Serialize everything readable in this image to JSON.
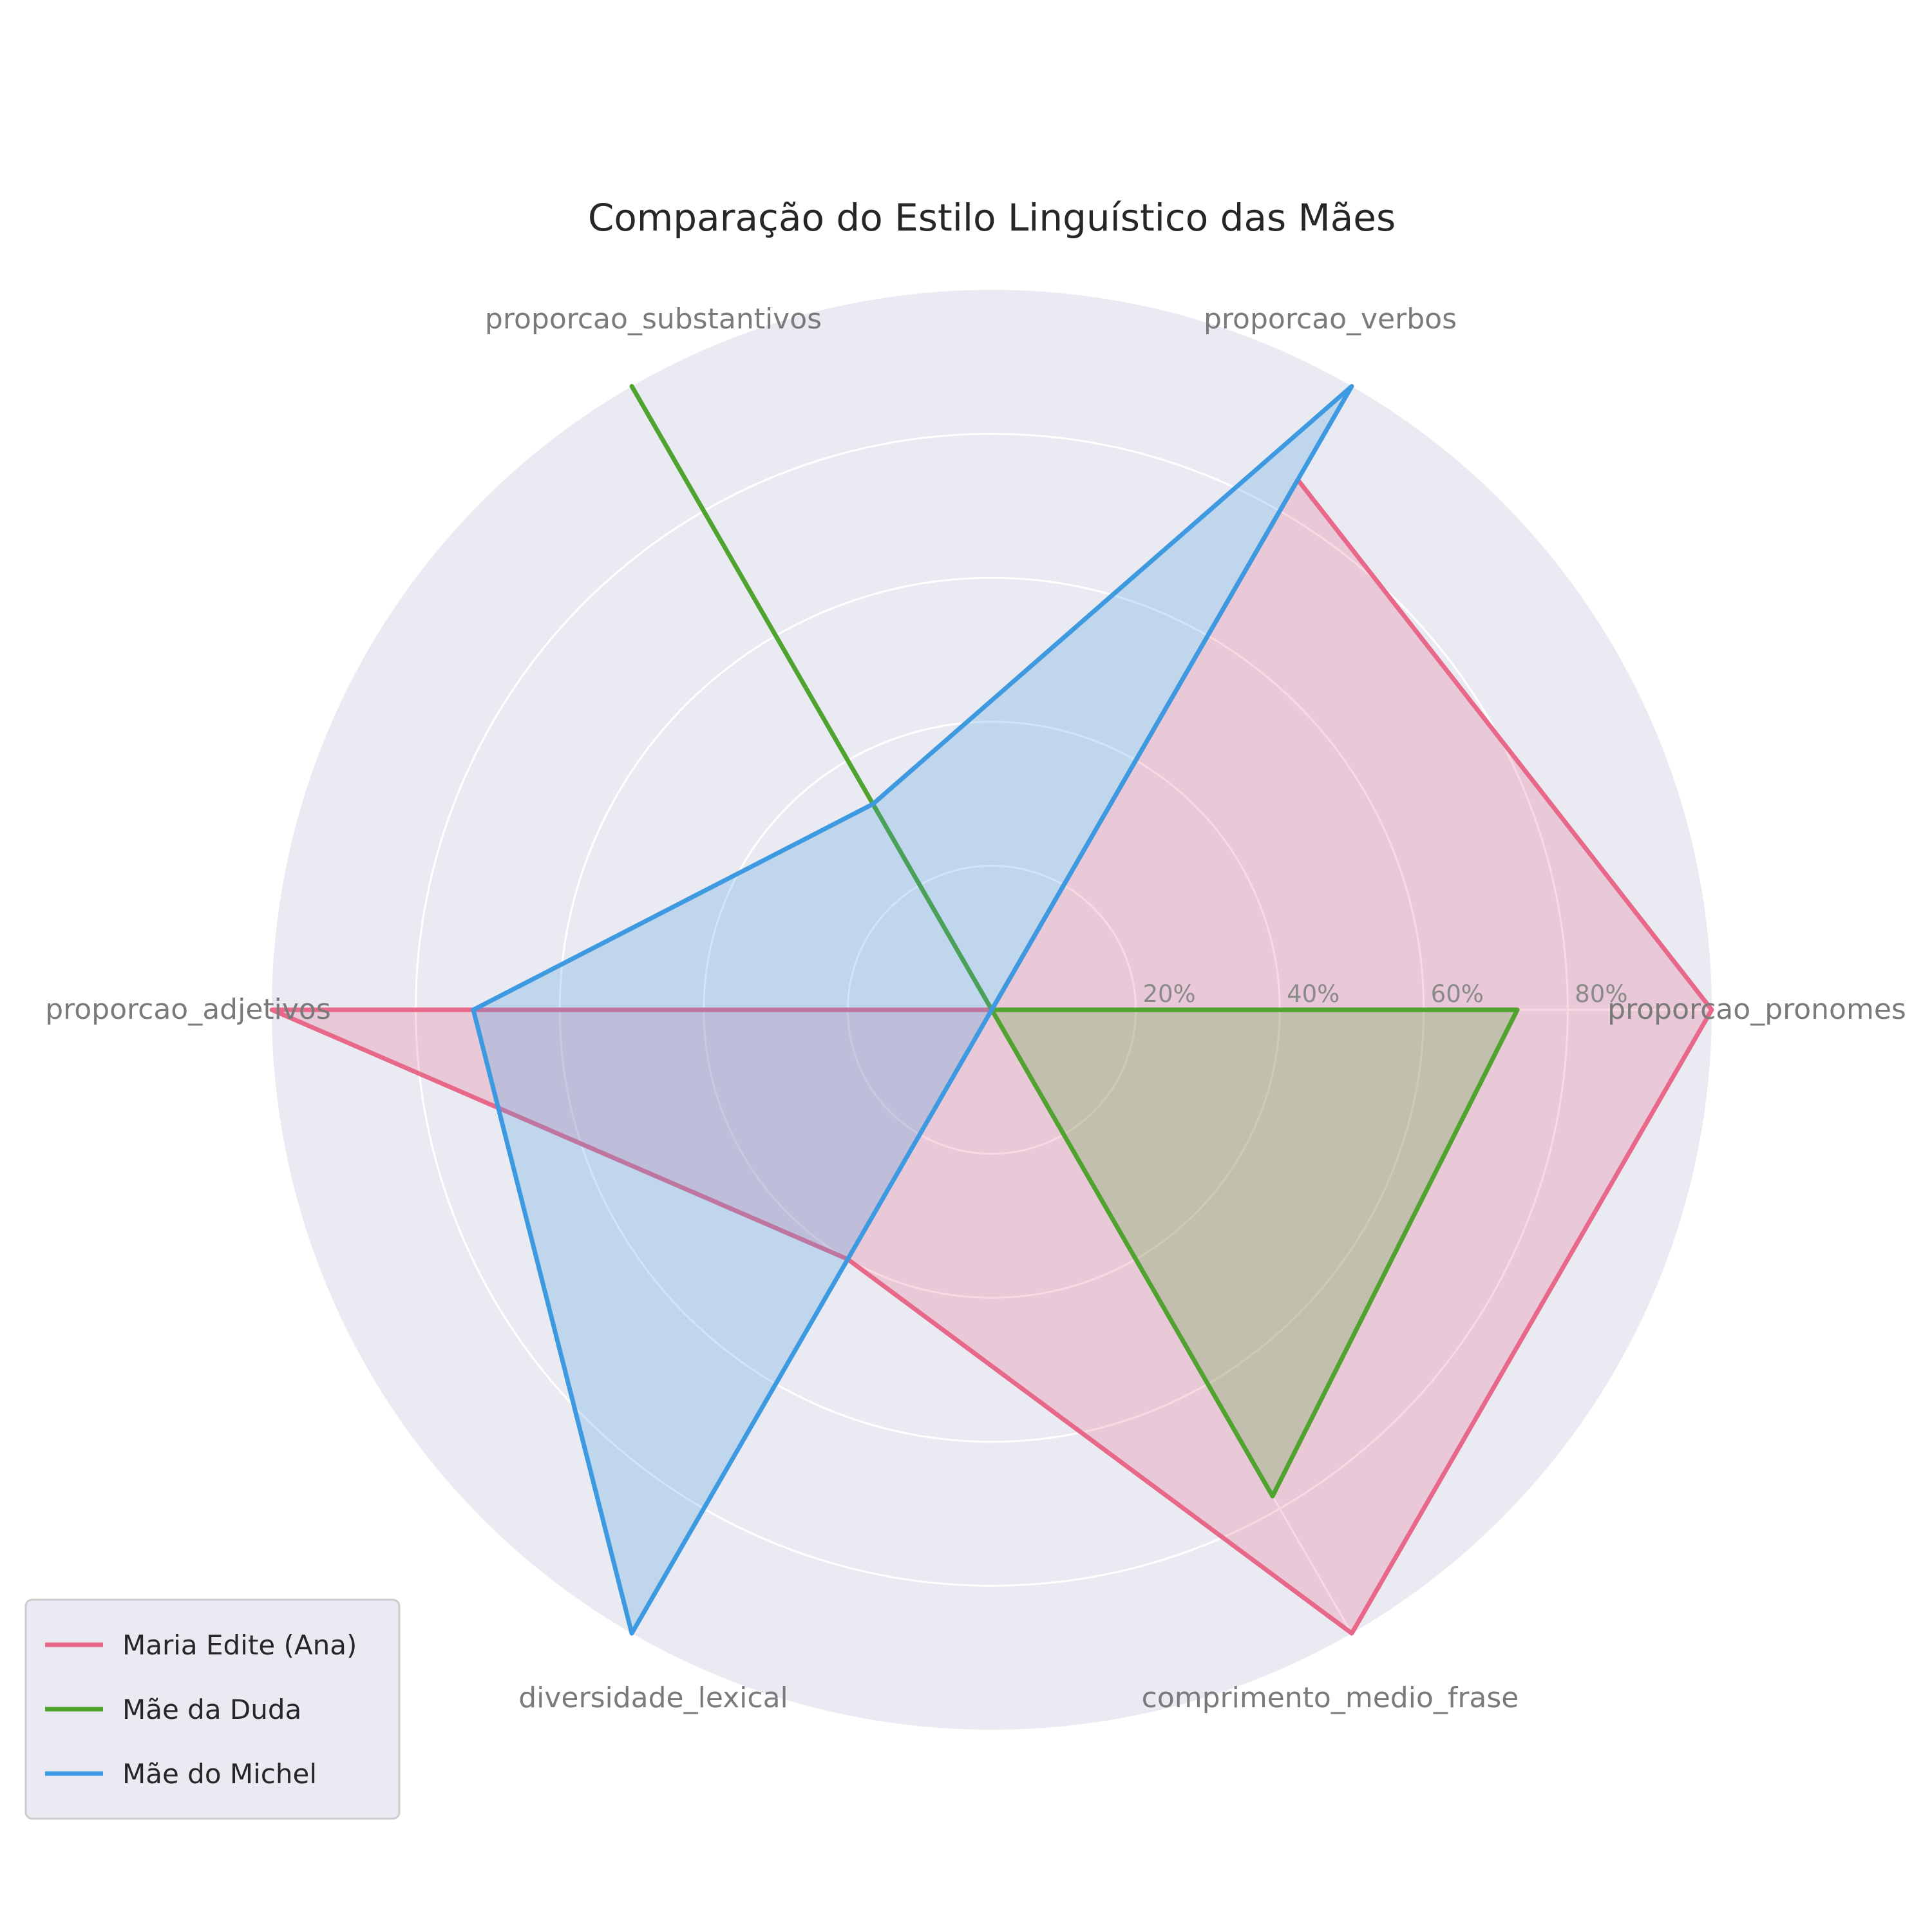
{
  "chart_data": {
    "type": "radar",
    "title": "Comparação do Estilo Linguístico das Mães",
    "axes": [
      "proporcao_pronomes",
      "proporcao_verbos",
      "proporcao_substantivos",
      "proporcao_adjetivos",
      "diversidade_lexical",
      "comprimento_medio_frase"
    ],
    "r_ticks": [
      20,
      40,
      60,
      80
    ],
    "r_tick_labels": [
      "20%",
      "40%",
      "60%",
      "80%"
    ],
    "r_range": [
      0,
      100
    ],
    "grid": true,
    "legend_position": "bottom-left",
    "series": [
      {
        "name": "Maria Edite (Ana)",
        "color": "#e8688a",
        "values": [
          100,
          85,
          0,
          100,
          40,
          100
        ]
      },
      {
        "name": "Mãe da Duda",
        "color": "#4fa32e",
        "values": [
          73,
          0,
          100,
          0,
          0,
          78
        ]
      },
      {
        "name": "Mãe do Michel",
        "color": "#3e9ae0",
        "values": [
          0,
          100,
          33,
          72,
          100,
          0
        ]
      }
    ]
  }
}
